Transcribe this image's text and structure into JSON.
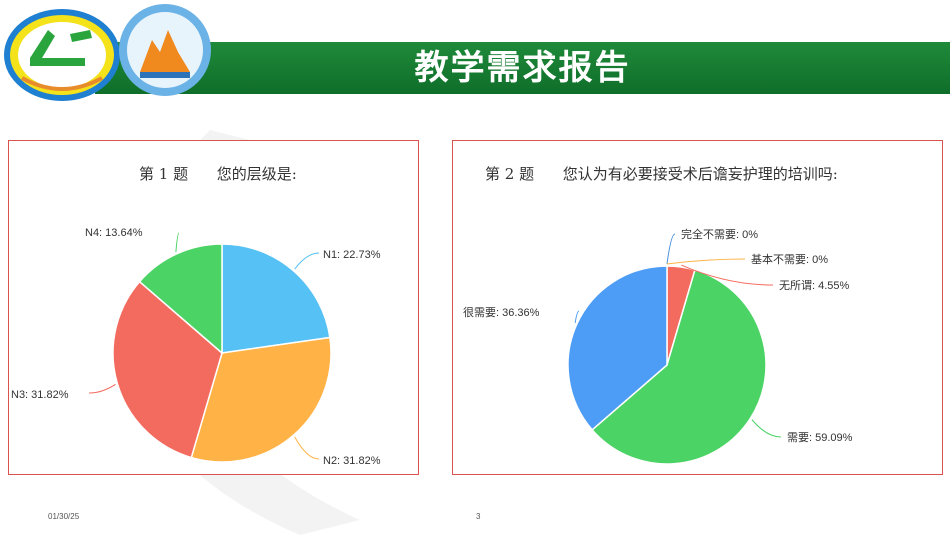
{
  "header": {
    "title": "教学需求报告"
  },
  "footer": {
    "date": "01/30/25",
    "page": "3"
  },
  "colors": {
    "header_green": "#1a7f35",
    "panel_border": "#d9534f"
  },
  "chart_data": [
    {
      "type": "pie",
      "title": "第 1 题      您的层级是:",
      "labels": [
        "N1",
        "N2",
        "N3",
        "N4"
      ],
      "values": [
        22.73,
        31.82,
        31.82,
        13.64
      ],
      "label_texts": [
        "N1: 22.73%",
        "N2: 31.82%",
        "N3: 31.82%",
        "N4: 13.64%"
      ],
      "colors": [
        "#55c1f5",
        "#ffb347",
        "#f36b5e",
        "#4cd365"
      ]
    },
    {
      "type": "pie",
      "title": "第 2 题      您认为有必要接受术后谵妄护理的培训吗:",
      "labels": [
        "完全不需要",
        "基本不需要",
        "无所谓",
        "需要",
        "很需要"
      ],
      "values": [
        0,
        0,
        4.55,
        59.09,
        36.36
      ],
      "label_texts": [
        "完全不需要: 0%",
        "基本不需要: 0%",
        "无所谓: 4.55%",
        "需要: 59.09%",
        "很需要: 36.36%"
      ],
      "colors": [
        "#4a90d9",
        "#ffb347",
        "#f36b5e",
        "#4cd365",
        "#4d9cf5"
      ]
    }
  ]
}
